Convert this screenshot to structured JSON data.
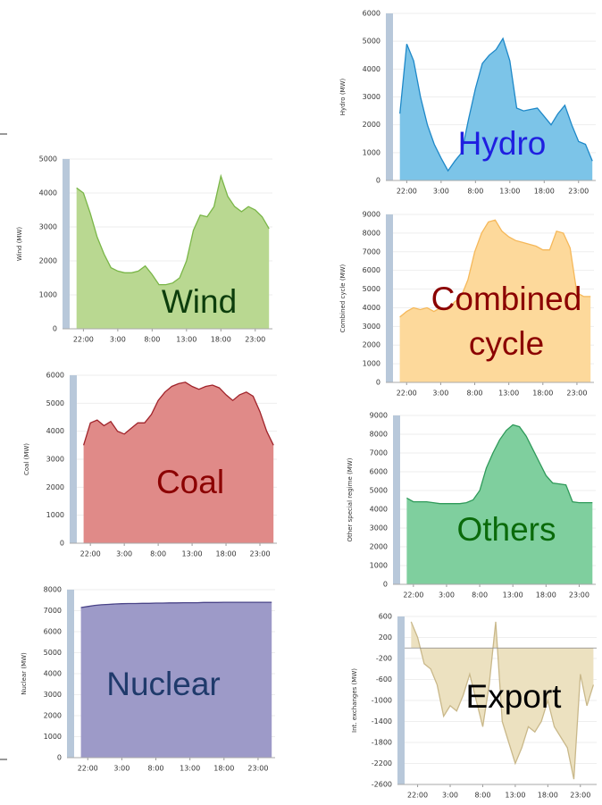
{
  "chart_data": [
    {
      "type": "area",
      "ylabel": "Wind (MW)",
      "label": [
        "Wind"
      ],
      "label_color": "#0c3d0c",
      "color": "#b9d891",
      "line_color": "#7ab648",
      "x": [
        21,
        22,
        23,
        24,
        25,
        26,
        27,
        28,
        29,
        30,
        31,
        32,
        33,
        34,
        35,
        36,
        37,
        38,
        39,
        40,
        41,
        42,
        43,
        44,
        45,
        46,
        47,
        48,
        49
      ],
      "values": [
        4150,
        4000,
        3400,
        2700,
        2200,
        1800,
        1700,
        1650,
        1650,
        1700,
        1850,
        1600,
        1300,
        1300,
        1350,
        1500,
        2000,
        2900,
        3350,
        3300,
        3600,
        4500,
        3900,
        3600,
        3450,
        3600,
        3500,
        3300,
        2950
      ],
      "xlim": [
        20,
        49.5
      ],
      "xticks": [
        {
          "value": 22,
          "label": "22:00"
        },
        {
          "value": 27,
          "label": "3:00"
        },
        {
          "value": 32,
          "label": "8:00"
        },
        {
          "value": 37,
          "label": "13:00"
        },
        {
          "value": 42,
          "label": "18:00"
        },
        {
          "value": 47,
          "label": "23:00"
        }
      ],
      "ylim": [
        0,
        5000
      ],
      "yticks": [
        0,
        1000,
        2000,
        3000,
        4000,
        5000
      ]
    },
    {
      "type": "area",
      "ylabel": "Coal (MW)",
      "label": [
        "Coal"
      ],
      "label_color": "#8b0000",
      "color": "#e08a88",
      "line_color": "#a0232a",
      "x": [
        21,
        22,
        23,
        24,
        25,
        26,
        27,
        28,
        29,
        30,
        31,
        32,
        33,
        34,
        35,
        36,
        37,
        38,
        39,
        40,
        41,
        42,
        43,
        44,
        45,
        46,
        47,
        48,
        49
      ],
      "values": [
        3500,
        4300,
        4400,
        4200,
        4350,
        4000,
        3900,
        4100,
        4300,
        4300,
        4600,
        5100,
        5400,
        5600,
        5700,
        5750,
        5600,
        5500,
        5600,
        5650,
        5550,
        5300,
        5100,
        5300,
        5400,
        5250,
        4700,
        4000,
        3500
      ],
      "xlim": [
        20,
        49.5
      ],
      "xticks": [
        {
          "value": 22,
          "label": "22:00"
        },
        {
          "value": 27,
          "label": "3:00"
        },
        {
          "value": 32,
          "label": "8:00"
        },
        {
          "value": 37,
          "label": "13:00"
        },
        {
          "value": 42,
          "label": "18:00"
        },
        {
          "value": 47,
          "label": "23:00"
        }
      ],
      "ylim": [
        0,
        6000
      ],
      "yticks": [
        0,
        1000,
        2000,
        3000,
        4000,
        5000,
        6000
      ]
    },
    {
      "type": "area",
      "ylabel": "Nuclear (MW)",
      "label": [
        "Nuclear"
      ],
      "label_color": "#1f3a6b",
      "color": "#9d9ac8",
      "line_color": "#4a4488",
      "x": [
        21,
        22,
        23,
        24,
        25,
        26,
        27,
        28,
        29,
        30,
        31,
        32,
        33,
        34,
        35,
        36,
        37,
        38,
        39,
        40,
        41,
        42,
        43,
        44,
        45,
        46,
        47,
        48,
        49
      ],
      "values": [
        7150,
        7200,
        7250,
        7280,
        7300,
        7320,
        7330,
        7340,
        7340,
        7350,
        7350,
        7360,
        7360,
        7370,
        7370,
        7380,
        7380,
        7380,
        7390,
        7390,
        7390,
        7400,
        7400,
        7400,
        7400,
        7400,
        7400,
        7400,
        7400
      ],
      "xlim": [
        20,
        49.5
      ],
      "xticks": [
        {
          "value": 22,
          "label": "22:00"
        },
        {
          "value": 27,
          "label": "3:00"
        },
        {
          "value": 32,
          "label": "8:00"
        },
        {
          "value": 37,
          "label": "13:00"
        },
        {
          "value": 42,
          "label": "18:00"
        },
        {
          "value": 47,
          "label": "23:00"
        }
      ],
      "ylim": [
        0,
        8000
      ],
      "yticks": [
        0,
        1000,
        2000,
        3000,
        4000,
        5000,
        6000,
        7000,
        8000
      ]
    },
    {
      "type": "area",
      "ylabel": "Hydro (MW)",
      "label": [
        "Hydro"
      ],
      "label_color": "#1f1fe0",
      "color": "#7cc4e8",
      "line_color": "#1e88c8",
      "x": [
        21,
        22,
        23,
        24,
        25,
        26,
        27,
        28,
        29,
        30,
        31,
        32,
        33,
        34,
        35,
        36,
        37,
        38,
        39,
        40,
        41,
        42,
        43,
        44,
        45,
        46,
        47,
        48,
        49
      ],
      "values": [
        2400,
        4900,
        4300,
        3000,
        2000,
        1300,
        800,
        350,
        700,
        1000,
        2200,
        3300,
        4200,
        4500,
        4700,
        5100,
        4300,
        2600,
        2500,
        2550,
        2600,
        2300,
        2000,
        2400,
        2700,
        2000,
        1400,
        1300,
        700
      ],
      "xlim": [
        20,
        49.5
      ],
      "xticks": [
        {
          "value": 22,
          "label": "22:00"
        },
        {
          "value": 27,
          "label": "3:00"
        },
        {
          "value": 32,
          "label": "8:00"
        },
        {
          "value": 37,
          "label": "13:00"
        },
        {
          "value": 42,
          "label": "18:00"
        },
        {
          "value": 47,
          "label": "23:00"
        }
      ],
      "ylim": [
        0,
        6000
      ],
      "yticks": [
        0,
        1000,
        2000,
        3000,
        4000,
        5000,
        6000
      ]
    },
    {
      "type": "area",
      "ylabel": "Combined cycle (MW)",
      "label": [
        "Combined",
        "cycle"
      ],
      "label_color": "#8b0000",
      "color": "#fdd99b",
      "line_color": "#f5b85a",
      "x": [
        21,
        22,
        23,
        24,
        25,
        26,
        27,
        28,
        29,
        30,
        31,
        32,
        33,
        34,
        35,
        36,
        37,
        38,
        39,
        40,
        41,
        42,
        43,
        44,
        45,
        46,
        47,
        48,
        49
      ],
      "values": [
        3500,
        3800,
        4000,
        3900,
        4000,
        3800,
        4000,
        3900,
        4300,
        4600,
        5500,
        7000,
        8000,
        8600,
        8700,
        8100,
        7800,
        7600,
        7500,
        7400,
        7300,
        7100,
        7100,
        8100,
        8000,
        7200,
        4800,
        4600,
        4600
      ],
      "xlim": [
        20,
        49.5
      ],
      "xticks": [
        {
          "value": 22,
          "label": "22:00"
        },
        {
          "value": 27,
          "label": "3:00"
        },
        {
          "value": 32,
          "label": "8:00"
        },
        {
          "value": 37,
          "label": "13:00"
        },
        {
          "value": 42,
          "label": "18:00"
        },
        {
          "value": 47,
          "label": "23:00"
        }
      ],
      "ylim": [
        0,
        9000
      ],
      "yticks": [
        0,
        1000,
        2000,
        3000,
        4000,
        5000,
        6000,
        7000,
        8000,
        9000
      ]
    },
    {
      "type": "area",
      "ylabel": "Other special regime (MW)",
      "label": [
        "Others"
      ],
      "label_color": "#0a6a0a",
      "color": "#7fcf9e",
      "line_color": "#2f9a5a",
      "x": [
        21,
        22,
        23,
        24,
        25,
        26,
        27,
        28,
        29,
        30,
        31,
        32,
        33,
        34,
        35,
        36,
        37,
        38,
        39,
        40,
        41,
        42,
        43,
        44,
        45,
        46,
        47,
        48,
        49
      ],
      "values": [
        4600,
        4400,
        4400,
        4400,
        4350,
        4300,
        4300,
        4300,
        4300,
        4350,
        4500,
        5000,
        6200,
        7000,
        7700,
        8200,
        8500,
        8400,
        7900,
        7200,
        6500,
        5800,
        5400,
        5350,
        5300,
        4400,
        4350,
        4350,
        4350
      ],
      "xlim": [
        20,
        49.5
      ],
      "xticks": [
        {
          "value": 22,
          "label": "22:00"
        },
        {
          "value": 27,
          "label": "3:00"
        },
        {
          "value": 32,
          "label": "8:00"
        },
        {
          "value": 37,
          "label": "13:00"
        },
        {
          "value": 42,
          "label": "18:00"
        },
        {
          "value": 47,
          "label": "23:00"
        }
      ],
      "ylim": [
        0,
        9000
      ],
      "yticks": [
        0,
        1000,
        2000,
        3000,
        4000,
        5000,
        6000,
        7000,
        8000,
        9000
      ]
    },
    {
      "type": "area",
      "ylabel": "Int. exchanges (MW)",
      "label": [
        "Export"
      ],
      "label_color": "#000000",
      "color": "#ece1c0",
      "line_color": "#c9b88a",
      "x": [
        21,
        22,
        23,
        24,
        25,
        26,
        27,
        28,
        29,
        30,
        31,
        32,
        33,
        34,
        35,
        36,
        37,
        38,
        39,
        40,
        41,
        42,
        43,
        44,
        45,
        46,
        47,
        48,
        49
      ],
      "values": [
        500,
        200,
        -300,
        -400,
        -700,
        -1300,
        -1100,
        -1200,
        -900,
        -500,
        -1000,
        -1500,
        -700,
        500,
        -1400,
        -1800,
        -2200,
        -1900,
        -1500,
        -1600,
        -1400,
        -1000,
        -1500,
        -1700,
        -1900,
        -2500,
        -500,
        -1100,
        -700
      ],
      "xlim": [
        20,
        49.5
      ],
      "xticks": [
        {
          "value": 22,
          "label": "22:00"
        },
        {
          "value": 27,
          "label": "3:00"
        },
        {
          "value": 32,
          "label": "8:00"
        },
        {
          "value": 37,
          "label": "13:00"
        },
        {
          "value": 42,
          "label": "18:00"
        },
        {
          "value": 47,
          "label": "23:00"
        }
      ],
      "ylim": [
        -2600,
        600
      ],
      "yticks": [
        600,
        200,
        -200,
        -600,
        -1000,
        -1400,
        -1800,
        -2200,
        -2600
      ]
    }
  ]
}
